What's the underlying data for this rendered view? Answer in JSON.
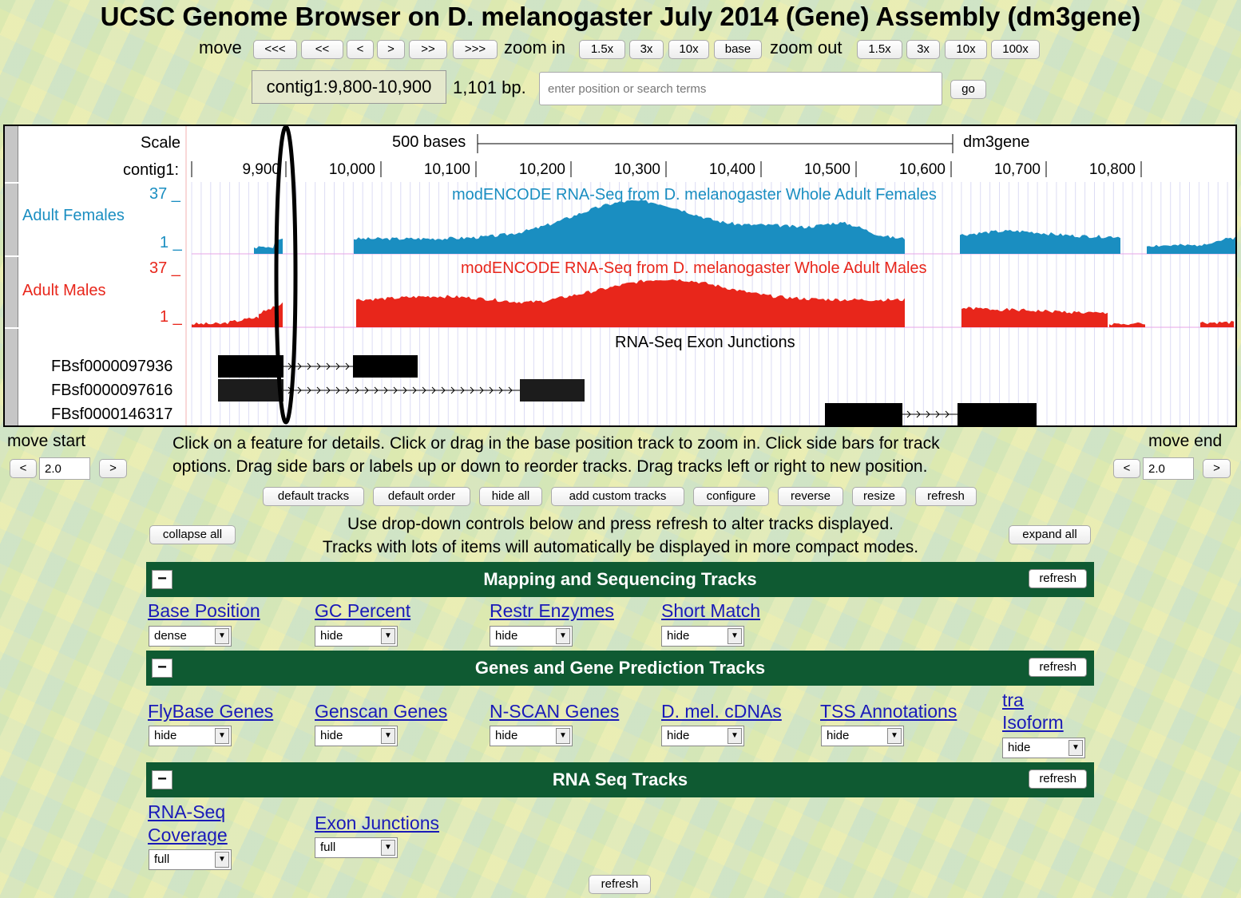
{
  "title": "UCSC Genome Browser on D. melanogaster July 2014 (Gene) Assembly (dm3gene)",
  "nav": {
    "move_label": "move",
    "move_buttons": [
      "<<<",
      "<<",
      "<",
      ">",
      ">>",
      ">>>"
    ],
    "zoom_in_label": "zoom in",
    "zoom_in_buttons": [
      "1.5x",
      "3x",
      "10x",
      "base"
    ],
    "zoom_out_label": "zoom out",
    "zoom_out_buttons": [
      "1.5x",
      "3x",
      "10x",
      "100x"
    ],
    "position": "contig1:9,800-10,900",
    "size": "1,101 bp.",
    "search_placeholder": "enter position or search terms",
    "go": "go"
  },
  "browser": {
    "scale_label": "Scale",
    "scale_bar_text": "500 bases",
    "assembly": "dm3gene",
    "chrom_label": "contig1:",
    "ticks": [
      "9,900",
      "10,000",
      "10,100",
      "10,200",
      "10,300",
      "10,400",
      "10,500",
      "10,600",
      "10,700",
      "10,800"
    ],
    "tracks": [
      {
        "name": "Adult Females",
        "title": "modENCODE RNA-Seq from D. melanogaster Whole Adult Females",
        "max": "37 _",
        "min": "1 _",
        "color": "#1a8ec1"
      },
      {
        "name": "Adult Males",
        "title": "modENCODE RNA-Seq from D. melanogaster Whole Adult Males",
        "max": "37 _",
        "min": "1 _",
        "color": "#e8261b"
      }
    ],
    "junction_title": "RNA-Seq Exon Junctions",
    "junctions": [
      "FBsf0000097936",
      "FBsf0000097616",
      "FBsf0000146317"
    ]
  },
  "move_start": {
    "label": "move start",
    "left": "<",
    "value": "2.0",
    "right": ">"
  },
  "move_end": {
    "label": "move end",
    "left": "<",
    "value": "2.0",
    "right": ">"
  },
  "help_text": [
    "Click on a feature for details. Click or drag in the base position track to zoom in. Click side bars for track",
    "options. Drag side bars or labels up or down to reorder tracks. Drag tracks left or right to new position."
  ],
  "action_buttons": [
    "default tracks",
    "default order",
    "hide all",
    "add custom tracks",
    "configure",
    "reverse",
    "resize",
    "refresh"
  ],
  "collapse_all": "collapse all",
  "expand_all": "expand all",
  "controls_text": [
    "Use drop-down controls below and press refresh to alter tracks displayed.",
    "Tracks with lots of items will automatically be displayed in more compact modes."
  ],
  "groups": [
    {
      "title": "Mapping and Sequencing Tracks",
      "refresh": "refresh",
      "minus": "−",
      "tracks": [
        {
          "label": "Base Position",
          "value": "dense"
        },
        {
          "label": "GC Percent",
          "value": "hide"
        },
        {
          "label": "Restr Enzymes",
          "value": "hide"
        },
        {
          "label": "Short Match",
          "value": "hide"
        }
      ]
    },
    {
      "title": "Genes and Gene Prediction Tracks",
      "refresh": "refresh",
      "minus": "−",
      "tracks": [
        {
          "label": "FlyBase Genes",
          "value": "hide"
        },
        {
          "label": "Genscan Genes",
          "value": "hide"
        },
        {
          "label": "N-SCAN Genes",
          "value": "hide"
        },
        {
          "label": "D. mel. cDNAs",
          "value": "hide"
        },
        {
          "label": "TSS Annotations",
          "value": "hide"
        },
        {
          "label": "tra Isoform",
          "label_line1": "tra",
          "label_line2": "Isoform",
          "value": "hide"
        }
      ]
    },
    {
      "title": "RNA Seq Tracks",
      "refresh": "refresh",
      "minus": "−",
      "tracks": [
        {
          "label": "RNA-Seq Coverage",
          "label_line1": "RNA-Seq",
          "label_line2": "Coverage",
          "value": "full"
        },
        {
          "label": "Exon Junctions",
          "value": "full"
        }
      ]
    }
  ],
  "bottom_refresh": "refresh",
  "colors": {
    "group_bar": "#0f5a32",
    "link": "#1a1ab8",
    "females": "#1a8ec1",
    "males": "#e8261b"
  }
}
